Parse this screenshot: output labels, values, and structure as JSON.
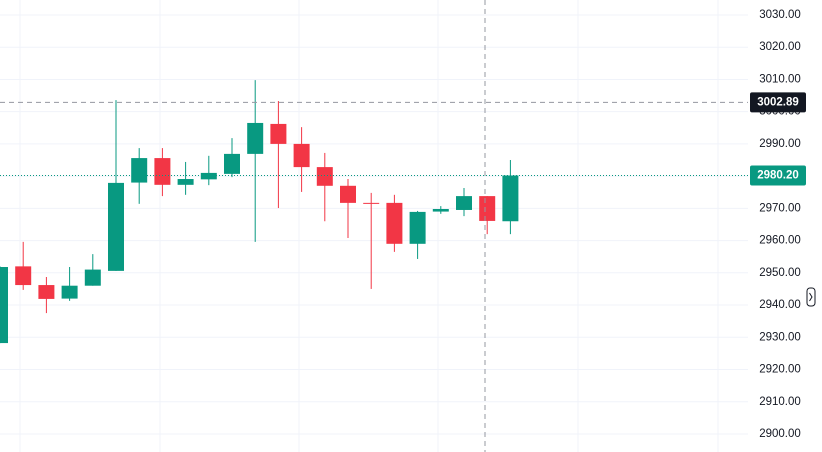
{
  "chart_data": {
    "type": "candlestick",
    "up_color": "#089981",
    "down_color": "#f23645",
    "series": [
      {
        "open": [
          2928.2,
          2952.0,
          2946.2,
          2942.0,
          2946.0,
          2950.6,
          2978.0,
          2985.6,
          2977.3,
          2979.0,
          2980.7,
          2986.9,
          2996.2,
          2990.0,
          2982.8,
          2977.0,
          2971.7,
          2971.7,
          2959.0,
          2969.0,
          2969.5,
          2973.8,
          2966.0
        ],
        "high": [
          2952.0,
          2959.6,
          2948.7,
          2951.8,
          2955.8,
          3003.6,
          2988.7,
          2988.7,
          2984.4,
          2986.3,
          2991.8,
          3009.8,
          3003.3,
          2995.2,
          2987.2,
          2979.1,
          2974.8,
          2974.2,
          2969.2,
          2970.7,
          2976.3,
          2973.8,
          2985.0
        ],
        "low": [
          2928.2,
          2944.7,
          2937.5,
          2941.3,
          2946.0,
          2950.6,
          2971.4,
          2973.8,
          2974.2,
          2977.2,
          2979.7,
          2959.6,
          2970.1,
          2975.1,
          2966.0,
          2960.8,
          2945.0,
          2956.5,
          2954.3,
          2968.3,
          2967.6,
          2962.0,
          2962.0
        ],
        "close": [
          2951.8,
          2946.2,
          2941.9,
          2946.0,
          2951.0,
          2977.9,
          2985.6,
          2977.3,
          2979.1,
          2981.0,
          2986.9,
          2996.5,
          2990.0,
          2982.8,
          2977.0,
          2971.7,
          2971.4,
          2959.0,
          2968.9,
          2969.8,
          2973.8,
          2966.1,
          2980.2
        ]
      }
    ],
    "ylim": [
      2894.4,
      3034.65
    ],
    "yticks": [
      {
        "value": 3030,
        "label": "3030.00"
      },
      {
        "value": 3020,
        "label": "3020.00"
      },
      {
        "value": 3010,
        "label": "3010.00"
      },
      {
        "value": 3000,
        "label": "3000.00"
      },
      {
        "value": 2990,
        "label": "2990.00"
      },
      {
        "value": 2980,
        "label": "2980.00"
      },
      {
        "value": 2970,
        "label": "2970.00"
      },
      {
        "value": 2960,
        "label": "2960.00"
      },
      {
        "value": 2950,
        "label": "2950.00"
      },
      {
        "value": 2940,
        "label": "2940.00"
      },
      {
        "value": 2930,
        "label": "2930.00"
      },
      {
        "value": 2920,
        "label": "2920.00"
      },
      {
        "value": 2910,
        "label": "2910.00"
      },
      {
        "value": 2900,
        "label": "2900.00"
      }
    ],
    "grid": true,
    "last_price": {
      "value": 2980.2,
      "label": "2980.20"
    },
    "crosshair_price": 3002.89
  }
}
